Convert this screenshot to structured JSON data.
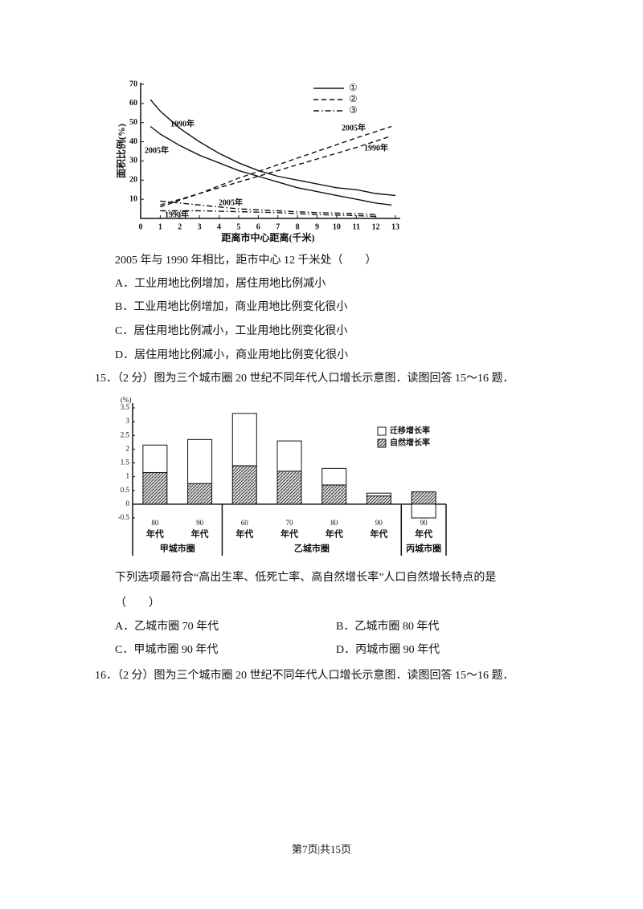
{
  "figure1": {
    "type": "line",
    "ylabel": "面积比例(%)",
    "xlabel": "距离市中心距离(千米)",
    "xlim": [
      0,
      13
    ],
    "ylim": [
      0,
      70
    ],
    "xticks": [
      0,
      1,
      2,
      3,
      4,
      5,
      6,
      7,
      8,
      9,
      10,
      11,
      12,
      13
    ],
    "yticks": [
      10,
      20,
      30,
      40,
      50,
      60,
      70
    ],
    "legend": [
      {
        "name": "①",
        "style": "solid"
      },
      {
        "name": "②",
        "style": "dashed"
      },
      {
        "name": "③",
        "style": "dashdot"
      }
    ],
    "series": [
      {
        "label": "1990年",
        "style": "solid",
        "x": [
          0.5,
          1,
          2,
          3,
          4,
          5,
          6,
          7,
          8,
          9,
          10,
          11,
          12,
          13
        ],
        "values": [
          62,
          56,
          47,
          40,
          34,
          29,
          25,
          22,
          20,
          18,
          16,
          15,
          13,
          12
        ]
      },
      {
        "label": "2005年",
        "style": "solid",
        "x": [
          0.5,
          1,
          2,
          3,
          4,
          5,
          6,
          7,
          8,
          9,
          10,
          11,
          12,
          12.8
        ],
        "values": [
          48,
          44,
          38,
          33,
          29,
          25,
          22,
          19,
          16,
          14,
          12,
          10,
          8,
          7
        ]
      },
      {
        "label": "2005年",
        "style": "dashed",
        "x": [
          1,
          3,
          5,
          7,
          9,
          11,
          12.8
        ],
        "values": [
          6,
          13,
          21,
          28,
          35,
          42,
          48
        ]
      },
      {
        "label": "1990年",
        "style": "dashed",
        "x": [
          1,
          3,
          5,
          7,
          9,
          11,
          12.8
        ],
        "values": [
          7,
          13,
          19,
          25,
          31,
          37,
          43
        ]
      },
      {
        "label": "2005年",
        "style": "dashdot",
        "x": [
          1,
          3,
          5,
          7,
          9,
          11,
          12
        ],
        "values": [
          9,
          7,
          5,
          4,
          3,
          2.5,
          2
        ]
      },
      {
        "label": "1990年",
        "style": "dashdot",
        "x": [
          1,
          3,
          5,
          7,
          9,
          11,
          12
        ],
        "values": [
          4,
          4,
          3.5,
          3,
          2,
          1.5,
          1
        ]
      }
    ]
  },
  "q14": {
    "stem": "2005 年与 1990 年相比，距市中心 12 千米处（　　）",
    "options": [
      "A．工业用地比例增加，居住用地比例减小",
      "B．工业用地比例增加，商业用地比例变化很小",
      "C．居住用地比例减小，工业用地比例变化很小",
      "D．居住用地比例减小，商业用地比例变化很小"
    ]
  },
  "q15": {
    "heading": "15．（2 分）图为三个城市圈 20 世纪不同年代人口增长示意图．读图回答 15～16 题．",
    "stem": "下列选项最符合“高出生率、低死亡率、高自然增长率”人口自然增长特点的是",
    "blank": "（　　）",
    "options": [
      "A．乙城市圈 70 年代",
      "B．乙城市圈 80 年代",
      "C．甲城市圈 90 年代",
      "D．丙城市圈 90 年代"
    ]
  },
  "figure2": {
    "type": "stacked_bar",
    "unit": "(%)",
    "ylim": [
      -0.5,
      3.5
    ],
    "yticks": [
      -0.5,
      0,
      0.5,
      1,
      1.5,
      2,
      2.5,
      3,
      3.5
    ],
    "categories": [
      "80",
      "90",
      "60",
      "70",
      "80",
      "90",
      "90"
    ],
    "decade": "年代",
    "groups": [
      {
        "name": "甲城市圈",
        "size": 2
      },
      {
        "name": "乙城市圈",
        "size": 4
      },
      {
        "name": "丙城市圈",
        "size": 1
      }
    ],
    "series": [
      {
        "name": "自然增长率",
        "fill": "hatch",
        "values": [
          1.15,
          0.75,
          1.4,
          1.2,
          0.7,
          0.3,
          0.45
        ]
      },
      {
        "name": "迁移增长率",
        "fill": "white",
        "values": [
          1.0,
          1.6,
          1.9,
          1.1,
          0.6,
          0.1,
          -0.5
        ]
      }
    ]
  },
  "q16": {
    "heading": "16．（2 分）图为三个城市圈 20 世纪不同年代人口增长示意图．读图回答 15～16 题．"
  },
  "footer": "第7页|共15页"
}
